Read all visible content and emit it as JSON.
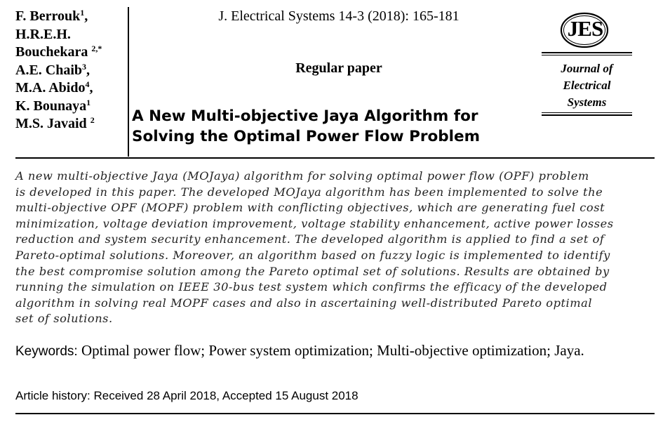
{
  "header": {
    "authors": [
      {
        "name": "F. Berrouk",
        "sup": "1",
        "sep": ","
      },
      {
        "name": "H.R.E.H.",
        "sup": "",
        "sep": ""
      },
      {
        "name": "Bouchekara ",
        "sup": "2,*",
        "sep": ""
      },
      {
        "name": "A.E. Chaib",
        "sup": "3",
        "sep": ","
      },
      {
        "name": "M.A. Abido",
        "sup": "4",
        "sep": ","
      },
      {
        "name": "K. Bounaya",
        "sup": "1",
        "sep": ""
      },
      {
        "name": "M.S. Javaid ",
        "sup": "2",
        "sep": ""
      }
    ],
    "journal_citation": "J. Electrical Systems 14-3 (2018): 165-181",
    "paper_type": "Regular paper",
    "title_lines": [
      "A New Multi-objective Jaya Algorithm for",
      "Solving the Optimal Power Flow Problem"
    ]
  },
  "logo": {
    "letters": "JES",
    "name_lines": [
      "Journal of",
      "Electrical",
      "Systems"
    ]
  },
  "abstract_lines": [
    "A new multi-objective Jaya (MOJaya) algorithm for solving optimal power flow (OPF) problem",
    "is developed in this paper. The developed MOJaya algorithm has been implemented to solve the",
    "multi-objective OPF (MOPF) problem with conflicting objectives, which are generating fuel cost",
    "minimization, voltage deviation improvement, voltage stability enhancement, active power losses",
    "reduction and system security enhancement. The developed algorithm is applied to find a set of",
    "Pareto-optimal solutions. Moreover, an algorithm based on fuzzy logic is implemented to identify",
    "the best compromise solution among the Pareto optimal set of solutions. Results are obtained by",
    "running the simulation on IEEE 30-bus test system which confirms the efficacy of the developed",
    "algorithm in solving real MOPF cases and also in ascertaining well-distributed Pareto optimal",
    "set of solutions."
  ],
  "keywords": {
    "label": "Keywords: ",
    "text": "Optimal power flow; Power system optimization; Multi-objective optimization; Jaya."
  },
  "history": "Article history: Received 28 April 2018, Accepted 15  August 2018"
}
